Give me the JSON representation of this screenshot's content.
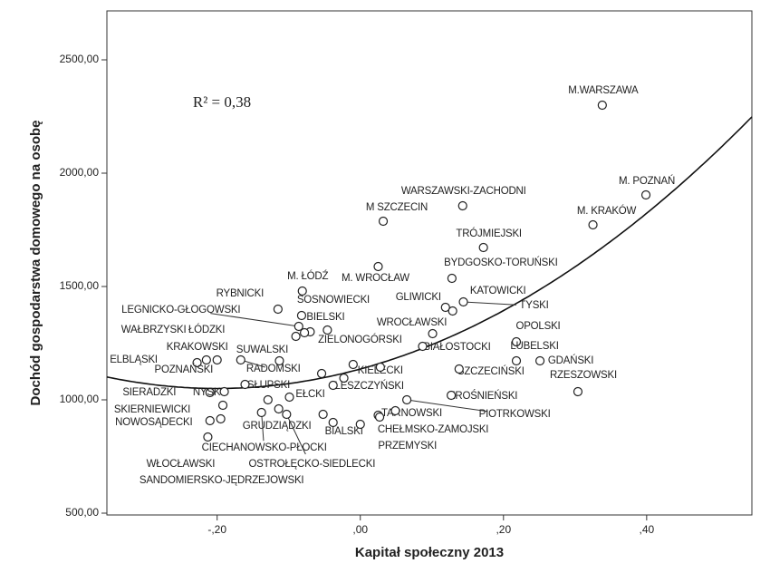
{
  "chart_data": {
    "type": "scatter",
    "x_label": "Kapitał społeczny 2013",
    "y_label": "Dochód gospodarstwa domowego na osobę",
    "annotation": "R² = 0,38",
    "xlim": [
      -0.354,
      0.547
    ],
    "ylim": [
      492,
      2716
    ],
    "xticks": [
      {
        "value": -0.2,
        "label": "-,20"
      },
      {
        "value": 0,
        "label": ",00"
      },
      {
        "value": 0.2,
        "label": ",20"
      },
      {
        "value": 0.4,
        "label": ",40"
      }
    ],
    "yticks": [
      {
        "value": 500,
        "label": "500,00"
      },
      {
        "value": 1000,
        "label": "1000,00"
      },
      {
        "value": 1500,
        "label": "1500,00"
      },
      {
        "value": 2000,
        "label": "2000,00"
      },
      {
        "value": 2500,
        "label": "2500,00"
      }
    ],
    "color": "#222222",
    "fit": {
      "coefficients": [
        1136,
        859,
        2147
      ]
    },
    "x": [
      0.338,
      0.399,
      0.325,
      0.143,
      0.032,
      0.172,
      0.128,
      0.025,
      -0.081,
      0.119,
      0.129,
      0.144,
      -0.115,
      -0.082,
      -0.086,
      -0.07,
      -0.09,
      -0.078,
      0.101,
      -0.046,
      0.218,
      0.218,
      0.087,
      0.251,
      -0.2,
      -0.113,
      -0.228,
      -0.215,
      -0.167,
      -0.01,
      0.138,
      0.304,
      -0.161,
      -0.21,
      -0.19,
      -0.099,
      -0.038,
      0.127,
      -0.192,
      0.025,
      0.065,
      -0.21,
      -0.114,
      -0.038,
      0.027,
      0.0,
      -0.138,
      -0.213,
      -0.103,
      -0.195,
      -0.129,
      -0.052,
      -0.054,
      -0.023,
      0.049,
      0.028
    ],
    "y": [
      2300,
      1904,
      1772,
      1856,
      1788,
      1672,
      1536,
      1588,
      1480,
      1408,
      1392,
      1432,
      1400,
      1372,
      1324,
      1300,
      1280,
      1296,
      1292,
      1308,
      1256,
      1172,
      1236,
      1172,
      1176,
      1172,
      1164,
      1176,
      1176,
      1156,
      1136,
      1036,
      1068,
      1032,
      1036,
      1012,
      1064,
      1020,
      976,
      932,
      1000,
      908,
      960,
      900,
      924,
      892,
      944,
      836,
      936,
      916,
      1000,
      936,
      1116,
      1096,
      952,
      1144
    ],
    "labels": [
      "M.WARSZAWA",
      "M. POZNAŃ",
      "M. KRAKÓW",
      "WARSZAWSKI-ZACHODNI",
      "M SZCZECIN",
      "TRÓJMIEJSKI",
      "BYDGOSKO-TORUŃSKI",
      "M. WROCŁAW",
      "M. ŁÓDŹ",
      "GLIWICKI",
      "KATOWICKI",
      "TYSKI",
      "RYBNICKI",
      "SOSNOWIECKI",
      "LEGNICKO-GŁOGOWSKI",
      "BIELSKI",
      "WAŁBRZYSKI",
      "ŁÓDZKI",
      "WROCŁAWSKI",
      "ZIELONOGÓRSKI",
      "OPOLSKI",
      "LUBELSKI",
      "BIAŁOSTOCKI",
      "GDAŃSKI",
      "KRAKOWSKI",
      "SUWALSKI",
      "ELBLĄSKI",
      "POZNAŃSKI",
      "RADOMSKI",
      "KIELECKI",
      "SZCZECIŃSKI",
      "RZESZOWSKI",
      "SŁUPSKI",
      "SIERADZKI",
      "NYSKI",
      "EŁCKI",
      "LESZCZYŃSKI",
      "KROŚNIEŃSKI",
      "SKIERNIEWICKI",
      "TARNOWSKI",
      "PIOTRKOWSKI",
      "NOWOSĄDECKI",
      "GRUDZIĄDZKI",
      "BIALSKI",
      "CHEŁMSKO-ZAMOJSKI",
      "PRZEMYSKI",
      "CIECHANOWSKO-PŁOCKI",
      "WŁOCŁAWSKI",
      "OSTROŁĘCKO-SIEDLECKI",
      "SANDOMIERSKO-JĘDRZEJOWSKI",
      null,
      null,
      null,
      null,
      null,
      null
    ]
  }
}
